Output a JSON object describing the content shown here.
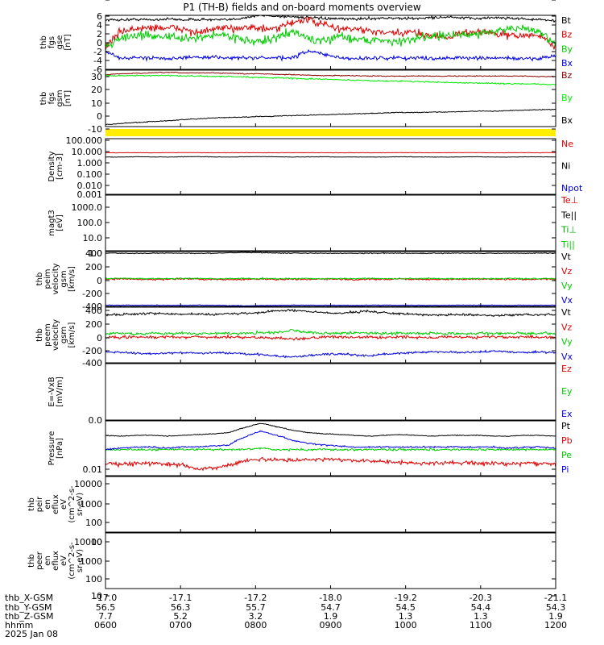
{
  "title": "P1 (TH-B) fields and on-board moments overview",
  "chart_data": [
    {
      "type": "line",
      "ylabel": [
        "thb",
        "fgs",
        "gse",
        "[nT]"
      ],
      "ticks": [
        "6",
        "4",
        "2",
        "0",
        "-2",
        "-4",
        "-6"
      ],
      "ylim": [
        -6,
        6
      ],
      "log": false,
      "legend": [
        {
          "name": "Bt",
          "color": "#000000"
        },
        {
          "name": "Bz",
          "color": "#dd0000"
        },
        {
          "name": "By",
          "color": "#00cc00"
        },
        {
          "name": "Bx",
          "color": "#0000dd"
        }
      ],
      "series": [
        {
          "name": "Bt",
          "color": "#000000",
          "noise": 0.25,
          "values": [
            5,
            5,
            5.1,
            5,
            5.2,
            5,
            5.1,
            5,
            5,
            5.5,
            6,
            5.8,
            5.7,
            5.5,
            5.3,
            5.2,
            5.2,
            5.3,
            5.4,
            5.3,
            5.3,
            5.5,
            5.6,
            5.4,
            5.3,
            5.5,
            5.4,
            5.2,
            5,
            4.8
          ]
        },
        {
          "name": "Bz",
          "color": "#dd0000",
          "noise": 0.7,
          "values": [
            -1,
            2.5,
            3,
            3.3,
            3.2,
            3,
            2,
            3,
            3,
            3.5,
            3,
            2.8,
            4.5,
            5,
            4,
            3,
            3,
            2.5,
            2,
            2,
            2.2,
            1.5,
            1.2,
            2,
            2.5,
            2,
            1.5,
            1.5,
            1.5,
            -1
          ]
        },
        {
          "name": "By",
          "color": "#00cc00",
          "noise": 0.8,
          "values": [
            -1,
            1,
            1.5,
            1.5,
            1.3,
            0.7,
            1,
            1.7,
            1.5,
            0.5,
            0,
            1,
            2.5,
            1,
            0,
            1.5,
            0.8,
            0.5,
            0.5,
            0,
            1,
            1.5,
            1.5,
            1.5,
            2,
            2.5,
            3,
            3,
            2.5,
            -1
          ]
        },
        {
          "name": "Bx",
          "color": "#0000dd",
          "noise": 0.35,
          "values": [
            -2,
            -3.5,
            -3.5,
            -3.4,
            -3.5,
            -3.5,
            -3.3,
            -3.3,
            -3.4,
            -3.5,
            -3.4,
            -3.5,
            -3.5,
            -2,
            -2.5,
            -3.5,
            -3.6,
            -3.5,
            -3.5,
            -3.4,
            -3.5,
            -3.5,
            -3.5,
            -3.4,
            -3.6,
            -3.5,
            -3.5,
            -3.7,
            -3.5,
            -3
          ]
        }
      ]
    },
    {
      "type": "line",
      "ylabel": [
        "thb",
        "fgs",
        "gsm",
        "[nT]"
      ],
      "ticks": [
        "30",
        "20",
        "10",
        "0",
        "-10",
        "-20"
      ],
      "ylim": [
        -29,
        33
      ],
      "log": false,
      "legend": [
        {
          "name": "Bz",
          "color": "#880000"
        },
        {
          "name": "By",
          "color": "#00ee00"
        },
        {
          "name": "Bx",
          "color": "#000000"
        }
      ],
      "series": [
        {
          "name": "Bz",
          "color": "#880000",
          "noise": 0.4,
          "values": [
            28,
            29,
            29.5,
            30,
            30.5,
            30,
            30,
            30,
            29.5,
            29,
            29,
            28.5,
            28,
            27.5,
            27,
            27,
            27,
            26.5,
            26.5,
            26.5,
            26.5,
            26.5,
            26.5,
            26.5,
            26.5,
            26.5,
            26.5,
            26.5,
            26,
            26
          ]
        },
        {
          "name": "By",
          "color": "#00ee00",
          "noise": 0.6,
          "values": [
            27,
            27,
            27,
            27,
            27,
            26.5,
            26.5,
            26,
            26,
            25.5,
            25,
            24.5,
            24,
            23.5,
            23,
            22.5,
            22,
            21.5,
            21,
            21,
            20.5,
            20,
            19.5,
            19,
            19,
            18.5,
            18,
            18,
            17.5,
            17
          ]
        },
        {
          "name": "Bx",
          "color": "#000000",
          "noise": 0.4,
          "values": [
            -27,
            -25.5,
            -24.5,
            -23.5,
            -22.5,
            -21.5,
            -20.5,
            -19.5,
            -19,
            -18.5,
            -18,
            -17.5,
            -17,
            -16.5,
            -16,
            -15.5,
            -15,
            -14.5,
            -14,
            -13.5,
            -13.5,
            -13,
            -13,
            -12.5,
            -12,
            -12,
            -11.5,
            -11,
            -10.5,
            -10
          ]
        }
      ]
    },
    {
      "type": "line",
      "ylabel": [
        "Density",
        "[cm-3]"
      ],
      "ticks": [
        "100.000",
        "10.000",
        "1.000",
        "0.100",
        "0.010",
        "0.001"
      ],
      "ylim": [
        0.0006,
        200
      ],
      "log": true,
      "legend": [
        {
          "name": "Ne",
          "color": "#dd0000"
        },
        {
          "name": "Ni",
          "color": "#000000"
        },
        {
          "name": "Npot",
          "color": "#0000dd"
        }
      ],
      "series": [
        {
          "name": "Ne",
          "color": "#dd0000",
          "noise": 0.03,
          "values": [
            8,
            8,
            8.1,
            8,
            8.2,
            8.3,
            8.2,
            8,
            8,
            8.1,
            8,
            8,
            8.1,
            8.2,
            8,
            8,
            8,
            8.1,
            8,
            8.2,
            8.1,
            8,
            8,
            8.3,
            8.2,
            8,
            8.1,
            8.2,
            8,
            8.5
          ]
        },
        {
          "name": "Ni",
          "color": "#000000",
          "noise": 0.04,
          "values": [
            3,
            3,
            3.2,
            3.1,
            3,
            3.2,
            3.3,
            3.1,
            3,
            3.2,
            3.3,
            3.2,
            3,
            3.1,
            3.2,
            3,
            3.1,
            3,
            3,
            3.2,
            3.1,
            3,
            3,
            3.1,
            3.2,
            3,
            3,
            3.1,
            3.2,
            3
          ]
        }
      ]
    },
    {
      "type": "line",
      "ylabel": [
        "magt3",
        "[eV]"
      ],
      "ticks": [
        "1000.0",
        "100.0",
        "10.0",
        "1.0",
        "0.1"
      ],
      "ylim": [
        0.1,
        8000
      ],
      "log": true,
      "legend": [
        {
          "name": "Te⊥",
          "color": "#dd0000"
        },
        {
          "name": "Te||",
          "color": "#000000"
        },
        {
          "name": "Ti⊥",
          "color": "#00aa00"
        },
        {
          "name": "Ti||",
          "color": "#00cc00"
        }
      ],
      "series": []
    },
    {
      "type": "line",
      "ylabel": [
        "thb",
        "peim",
        "velocity",
        "gsm",
        "[km/s]"
      ],
      "ticks": [
        "400",
        "200",
        "0",
        "-200",
        "-400"
      ],
      "ylim": [
        -480,
        490
      ],
      "log": false,
      "legend": [
        {
          "name": "Vt",
          "color": "#000000"
        },
        {
          "name": "Vz",
          "color": "#dd0000"
        },
        {
          "name": "Vy",
          "color": "#00cc00"
        },
        {
          "name": "Vx",
          "color": "#0000dd"
        }
      ],
      "series": [
        {
          "name": "Vt",
          "color": "#000000",
          "noise": 6,
          "values": [
            460,
            460,
            455,
            460,
            462,
            460,
            458,
            460,
            470,
            475,
            470,
            465,
            462,
            460,
            460,
            458,
            460,
            460,
            462,
            460,
            458,
            460,
            460,
            462,
            460,
            458,
            460,
            460,
            462,
            460
          ]
        },
        {
          "name": "Vz",
          "color": "#dd0000",
          "noise": 12,
          "values": [
            0,
            5,
            0,
            -5,
            0,
            5,
            0,
            0,
            -5,
            0,
            5,
            -5,
            0,
            0,
            5,
            0,
            -5,
            0,
            0,
            5,
            0,
            0,
            -5,
            0,
            5,
            0,
            0,
            -5,
            0,
            0
          ]
        },
        {
          "name": "Vy",
          "color": "#00cc00",
          "noise": 10,
          "values": [
            10,
            15,
            10,
            12,
            10,
            15,
            12,
            10,
            10,
            15,
            12,
            10,
            12,
            15,
            10,
            12,
            10,
            15,
            10,
            12,
            10,
            15,
            12,
            10,
            10,
            12,
            15,
            10,
            12,
            10
          ]
        },
        {
          "name": "Vx",
          "color": "#0000dd",
          "noise": 5,
          "values": [
            -460,
            -460,
            -458,
            -460,
            -462,
            -460,
            -458,
            -460,
            -465,
            -470,
            -465,
            -462,
            -460,
            -458,
            -460,
            -460,
            -462,
            -460,
            -458,
            -460,
            -460,
            -462,
            -460,
            -458,
            -460,
            -460,
            -462,
            -460,
            -458,
            -460
          ]
        }
      ]
    },
    {
      "type": "line",
      "ylabel": [
        "thb",
        "peem",
        "velocity",
        "gsm",
        "[km/s]"
      ],
      "ticks": [
        "400",
        "200",
        "0",
        "-200",
        "-400"
      ],
      "ylim": [
        -470,
        450
      ],
      "log": false,
      "legend": [
        {
          "name": "Vt",
          "color": "#000000"
        },
        {
          "name": "Vz",
          "color": "#dd0000"
        },
        {
          "name": "Vy",
          "color": "#00cc00"
        },
        {
          "name": "Vx",
          "color": "#0000dd"
        }
      ],
      "series": [
        {
          "name": "Vt",
          "color": "#000000",
          "noise": 15,
          "values": [
            320,
            330,
            340,
            350,
            340,
            330,
            340,
            330,
            340,
            350,
            360,
            390,
            400,
            380,
            360,
            350,
            370,
            380,
            360,
            340,
            330,
            320,
            320,
            330,
            320,
            310,
            320,
            330,
            320,
            330
          ]
        },
        {
          "name": "Vz",
          "color": "#dd0000",
          "noise": 20,
          "values": [
            -50,
            -50,
            -40,
            -50,
            -40,
            -50,
            -40,
            -50,
            -40,
            -50,
            -50,
            -60,
            -80,
            -60,
            -50,
            -40,
            -50,
            -40,
            -50,
            -40,
            -50,
            -50,
            -40,
            -50,
            -50,
            -40,
            -50,
            -40,
            -50,
            -50
          ]
        },
        {
          "name": "Vy",
          "color": "#00cc00",
          "noise": 20,
          "values": [
            10,
            20,
            10,
            20,
            10,
            20,
            10,
            20,
            10,
            20,
            30,
            40,
            60,
            40,
            20,
            20,
            30,
            20,
            10,
            20,
            10,
            20,
            10,
            10,
            20,
            10,
            20,
            10,
            20,
            10
          ]
        },
        {
          "name": "Vx",
          "color": "#0000dd",
          "noise": 15,
          "values": [
            -290,
            -300,
            -310,
            -320,
            -310,
            -300,
            -310,
            -300,
            -310,
            -320,
            -330,
            -360,
            -380,
            -350,
            -330,
            -320,
            -340,
            -350,
            -330,
            -310,
            -300,
            -290,
            -290,
            -300,
            -290,
            -280,
            -290,
            -300,
            -290,
            -300
          ]
        }
      ]
    },
    {
      "type": "line",
      "ylabel": [
        "E=-VxB",
        "[mV/m]"
      ],
      "ticks": [
        "0.0"
      ],
      "ylim": [
        0,
        1
      ],
      "log": false,
      "legend": [
        {
          "name": "Ez",
          "color": "#dd0000"
        },
        {
          "name": "Ey",
          "color": "#00cc00"
        },
        {
          "name": "Ex",
          "color": "#0000dd"
        }
      ],
      "series": []
    },
    {
      "type": "line",
      "ylabel": [
        "Pressure",
        "[nPa]"
      ],
      "ticks": [
        "0.01"
      ],
      "ylim": [
        0.004,
        0.5
      ],
      "log": true,
      "legend": [
        {
          "name": "Pt",
          "color": "#000000"
        },
        {
          "name": "Pb",
          "color": "#dd0000"
        },
        {
          "name": "Pe",
          "color": "#00cc00"
        },
        {
          "name": "Pi",
          "color": "#0000dd"
        }
      ],
      "series": [
        {
          "name": "Pt",
          "color": "#000000",
          "noise": 0.03,
          "values": [
            0.14,
            0.13,
            0.14,
            0.14,
            0.13,
            0.14,
            0.15,
            0.16,
            0.18,
            0.28,
            0.4,
            0.3,
            0.22,
            0.18,
            0.16,
            0.15,
            0.14,
            0.13,
            0.14,
            0.15,
            0.14,
            0.13,
            0.14,
            0.14,
            0.14,
            0.13,
            0.13,
            0.14,
            0.14,
            0.13
          ]
        },
        {
          "name": "Pb",
          "color": "#dd0000",
          "noise": 0.15,
          "values": [
            0.012,
            0.011,
            0.012,
            0.012,
            0.011,
            0.01,
            0.007,
            0.008,
            0.01,
            0.015,
            0.017,
            0.016,
            0.015,
            0.016,
            0.017,
            0.016,
            0.015,
            0.014,
            0.014,
            0.013,
            0.012,
            0.012,
            0.012,
            0.013,
            0.012,
            0.012,
            0.011,
            0.012,
            0.012,
            0.011
          ]
        },
        {
          "name": "Pe",
          "color": "#00cc00",
          "noise": 0.08,
          "values": [
            0.04,
            0.04,
            0.04,
            0.04,
            0.04,
            0.04,
            0.04,
            0.04,
            0.04,
            0.04,
            0.045,
            0.04,
            0.04,
            0.04,
            0.04,
            0.04,
            0.04,
            0.04,
            0.04,
            0.04,
            0.04,
            0.04,
            0.04,
            0.04,
            0.04,
            0.04,
            0.04,
            0.04,
            0.04,
            0.04
          ]
        },
        {
          "name": "Pi",
          "color": "#0000dd",
          "noise": 0.06,
          "values": [
            0.04,
            0.045,
            0.05,
            0.05,
            0.045,
            0.05,
            0.05,
            0.055,
            0.06,
            0.12,
            0.2,
            0.14,
            0.09,
            0.07,
            0.06,
            0.055,
            0.05,
            0.05,
            0.05,
            0.05,
            0.05,
            0.05,
            0.05,
            0.05,
            0.05,
            0.05,
            0.045,
            0.05,
            0.05,
            0.045
          ]
        }
      ]
    },
    {
      "type": "line",
      "ylabel": [
        "thb",
        "peir",
        "en",
        "eflux",
        "eV",
        "(cm^2-s-",
        "sr-eV)"
      ],
      "ticks": [
        "10000",
        "1000",
        "100",
        "10"
      ],
      "ylim": [
        7,
        30000
      ],
      "log": true,
      "legend": [],
      "series": []
    },
    {
      "type": "line",
      "ylabel": [
        "thb",
        "peer",
        "en",
        "eflux",
        "eV",
        "(cm^2-s-",
        "sr-eV)"
      ],
      "ticks": [
        "10000",
        "1000",
        "100",
        "10"
      ],
      "ylim": [
        7,
        30000
      ],
      "log": true,
      "legend": [],
      "series": []
    }
  ],
  "xaxis": {
    "rows": [
      {
        "label": "thb_X-GSM",
        "values": [
          "-17.0",
          "-17.1",
          "-17.2",
          "-18.0",
          "-19.2",
          "-20.3",
          "-21.1"
        ]
      },
      {
        "label": "thb_Y-GSM",
        "values": [
          "56.5",
          "56.3",
          "55.7",
          "54.7",
          "54.5",
          "54.4",
          "54.3"
        ]
      },
      {
        "label": "thb_Z-GSM",
        "values": [
          "7.7",
          "5.2",
          "3.2",
          "1.9",
          "1.3",
          "1.3",
          "1.9"
        ]
      },
      {
        "label": "hhmm",
        "values": [
          "0600",
          "0700",
          "0800",
          "0900",
          "1000",
          "1100",
          "1200"
        ]
      }
    ],
    "date": "2025 Jan 08"
  }
}
